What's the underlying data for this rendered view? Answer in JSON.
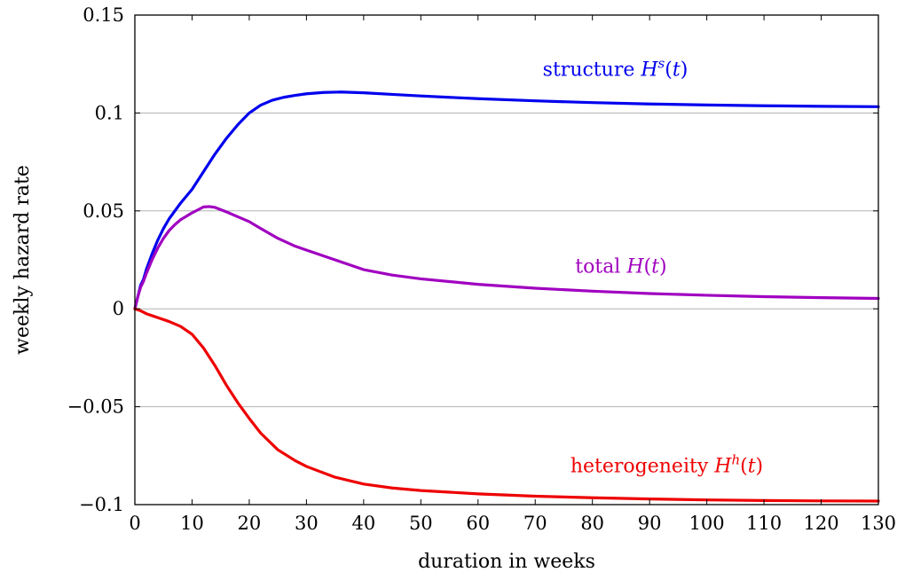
{
  "chart_data": {
    "type": "line",
    "xlabel": "duration in weeks",
    "ylabel": "weekly hazard rate",
    "xlim": [
      0,
      130
    ],
    "ylim": [
      -0.1,
      0.15
    ],
    "xticks": [
      0,
      10,
      20,
      30,
      40,
      50,
      60,
      70,
      80,
      90,
      100,
      110,
      120,
      130
    ],
    "yticks": [
      -0.1,
      -0.05,
      0,
      0.05,
      0.1,
      0.15
    ],
    "ytick_labels": [
      "−0.1",
      "−0.05",
      "0",
      "0.05",
      "0.1",
      "0.15"
    ],
    "grid": "horizontal",
    "series": [
      {
        "key": "structure",
        "label_text": "structure",
        "label_math": "H",
        "label_sup": "s",
        "label_arg": "(t)",
        "color": "#0000ee",
        "x": [
          0,
          0.5,
          1,
          1.5,
          2,
          3,
          4,
          5,
          6,
          7,
          8,
          10,
          12,
          14,
          16,
          18,
          20,
          22,
          24,
          26,
          28,
          30,
          33,
          36,
          40,
          45,
          50,
          60,
          70,
          80,
          90,
          100,
          110,
          120,
          130
        ],
        "y": [
          0,
          0.006,
          0.012,
          0.015,
          0.02,
          0.028,
          0.035,
          0.041,
          0.046,
          0.05,
          0.054,
          0.061,
          0.07,
          0.079,
          0.087,
          0.094,
          0.1,
          0.104,
          0.1065,
          0.108,
          0.109,
          0.1098,
          0.1105,
          0.1107,
          0.1103,
          0.1095,
          0.1087,
          0.1073,
          0.1062,
          0.1053,
          0.1046,
          0.1041,
          0.1037,
          0.1034,
          0.1032
        ]
      },
      {
        "key": "total",
        "label_text": "total",
        "label_math": "H",
        "label_sup": "",
        "label_arg": "(t)",
        "color": "#a000c0",
        "x": [
          0,
          0.5,
          1,
          1.5,
          2,
          3,
          4,
          5,
          6,
          7,
          8,
          10,
          12,
          13,
          14,
          16,
          18,
          20,
          22,
          25,
          28,
          30,
          35,
          40,
          45,
          50,
          60,
          70,
          80,
          90,
          100,
          110,
          120,
          130
        ],
        "y": [
          0,
          0.006,
          0.011,
          0.014,
          0.018,
          0.025,
          0.031,
          0.036,
          0.04,
          0.043,
          0.0455,
          0.049,
          0.052,
          0.0522,
          0.0518,
          0.0495,
          0.047,
          0.0445,
          0.041,
          0.036,
          0.032,
          0.03,
          0.025,
          0.02,
          0.0172,
          0.0153,
          0.0125,
          0.0105,
          0.009,
          0.0078,
          0.0069,
          0.0062,
          0.0057,
          0.0053
        ]
      },
      {
        "key": "heterogeneity",
        "label_text": "heterogeneity",
        "label_math": "H",
        "label_sup": "h",
        "label_arg": "(t)",
        "color": "#ee0000",
        "x": [
          0,
          0.5,
          1,
          2,
          3,
          4,
          6,
          8,
          10,
          12,
          14,
          16,
          18,
          20,
          22,
          25,
          28,
          30,
          35,
          40,
          45,
          50,
          60,
          70,
          80,
          90,
          100,
          110,
          120,
          130
        ],
        "y": [
          0,
          -0.0005,
          -0.001,
          -0.0025,
          -0.0035,
          -0.0045,
          -0.0065,
          -0.009,
          -0.013,
          -0.02,
          -0.029,
          -0.039,
          -0.048,
          -0.056,
          -0.0635,
          -0.072,
          -0.0775,
          -0.0805,
          -0.086,
          -0.0895,
          -0.0915,
          -0.0928,
          -0.0945,
          -0.0957,
          -0.0965,
          -0.0971,
          -0.0976,
          -0.0979,
          -0.0981,
          -0.0982
        ]
      }
    ]
  }
}
